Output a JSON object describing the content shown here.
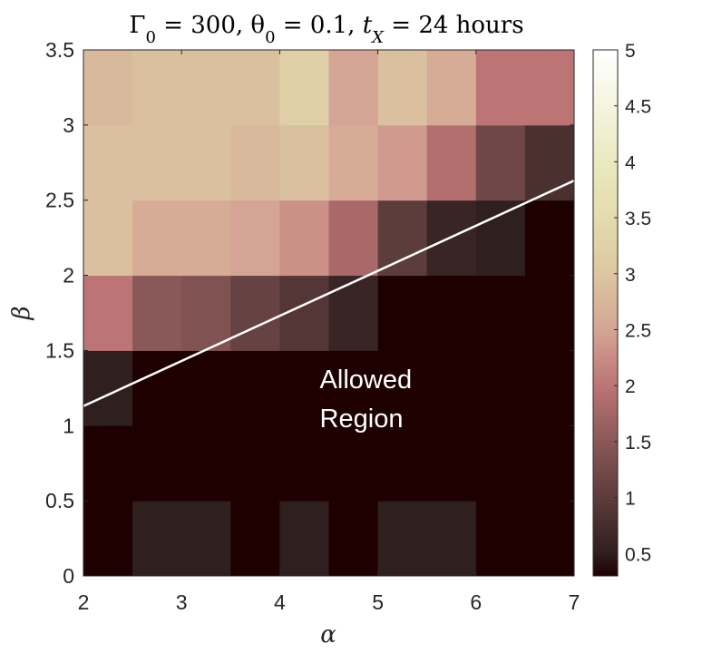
{
  "chart_data": {
    "type": "heatmap",
    "title": "Γ₀ = 300, θ₀ = 0.1, t_X = 24 hours",
    "xlabel": "α",
    "ylabel": "β",
    "xlim": [
      2,
      7
    ],
    "ylim": [
      0,
      3.5
    ],
    "x_ticks": [
      "2",
      "3",
      "4",
      "5",
      "6",
      "7"
    ],
    "y_ticks": [
      "0",
      "0.5",
      "1",
      "1.5",
      "2",
      "2.5",
      "3",
      "3.5"
    ],
    "x_centers": [
      2.25,
      2.75,
      3.25,
      3.75,
      4.25,
      4.75,
      5.25,
      5.75,
      6.25,
      6.75
    ],
    "y_centers": [
      0.25,
      0.75,
      1.25,
      1.75,
      2.25,
      2.75,
      3.25
    ],
    "values": [
      [
        0.3,
        0.5,
        0.5,
        0.3,
        0.5,
        0.3,
        0.5,
        0.5,
        0.3,
        0.3
      ],
      [
        0.3,
        0.3,
        0.3,
        0.3,
        0.3,
        0.3,
        0.3,
        0.3,
        0.3,
        0.3
      ],
      [
        0.5,
        0.3,
        0.3,
        0.3,
        0.3,
        0.3,
        0.3,
        0.3,
        0.3,
        0.3
      ],
      [
        2.0,
        1.5,
        1.4,
        1.1,
        0.9,
        0.6,
        0.3,
        0.3,
        0.3,
        0.3
      ],
      [
        2.9,
        2.6,
        2.6,
        2.5,
        2.3,
        1.8,
        1.0,
        0.6,
        0.5,
        0.3
      ],
      [
        2.9,
        2.9,
        2.9,
        2.8,
        2.9,
        2.6,
        2.4,
        1.9,
        1.2,
        0.8
      ],
      [
        2.8,
        2.9,
        2.9,
        2.9,
        3.2,
        2.5,
        2.9,
        2.6,
        2.0,
        2.0
      ]
    ],
    "line": {
      "x": [
        2,
        7
      ],
      "y": [
        1.13,
        2.63
      ],
      "color": "#ffffff"
    },
    "annotation": {
      "lines": [
        "Allowed",
        "Region"
      ],
      "x": 4.75,
      "y": 1.25
    },
    "colorbar": {
      "min": 0.3,
      "max": 5,
      "ticks": [
        "0.5",
        "1",
        "1.5",
        "2",
        "2.5",
        "3",
        "3.5",
        "4",
        "4.5",
        "5"
      ],
      "tick_values": [
        0.5,
        1,
        1.5,
        2,
        2.5,
        3,
        3.5,
        4,
        4.5,
        5
      ]
    },
    "colormap": [
      [
        0.3,
        "#1e0000"
      ],
      [
        0.5,
        "#2f1f1e"
      ],
      [
        1.0,
        "#5d3c3c"
      ],
      [
        1.5,
        "#8a5858"
      ],
      [
        2.0,
        "#bd7474"
      ],
      [
        2.5,
        "#d4a594"
      ],
      [
        3.0,
        "#dcc7a0"
      ],
      [
        3.5,
        "#e3dcae"
      ],
      [
        4.0,
        "#ebe9bf"
      ],
      [
        4.5,
        "#f5f5df"
      ],
      [
        5.0,
        "#ffffff"
      ]
    ]
  }
}
